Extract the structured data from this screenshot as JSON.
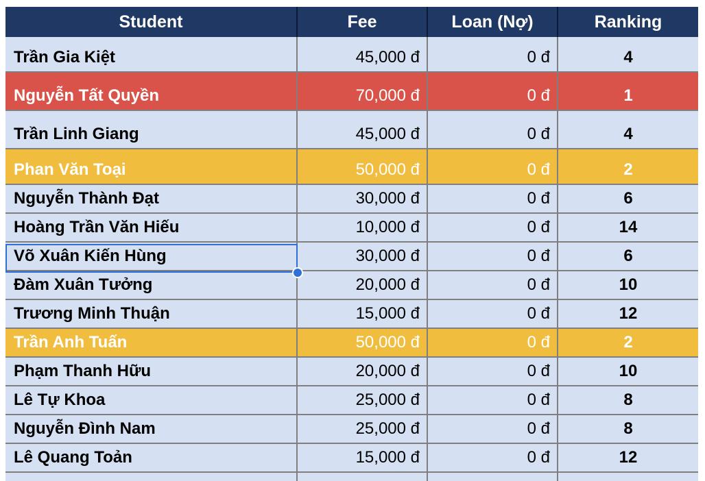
{
  "colors": {
    "header_bg": "#1f3864",
    "row_bg": "#d5e1f2",
    "rank1_bg": "#d9534a",
    "rank2_bg": "#f1bd3f",
    "highlight_text": "#ffffff",
    "selection": "#2f6fd6"
  },
  "headers": {
    "student": "Student",
    "fee": "Fee",
    "loan": "Loan (Nợ)",
    "ranking": "Ranking"
  },
  "rows": [
    {
      "student": "Trần Gia Kiệt",
      "fee": "45,000 đ",
      "loan": "0 đ",
      "ranking": "4",
      "highlight": "none"
    },
    {
      "student": "Nguyễn Tất Quyền",
      "fee": "70,000 đ",
      "loan": "0 đ",
      "ranking": "1",
      "highlight": "red"
    },
    {
      "student": "Trần Linh Giang",
      "fee": "45,000 đ",
      "loan": "0 đ",
      "ranking": "4",
      "highlight": "none"
    },
    {
      "student": "Phan Văn Toại",
      "fee": "50,000 đ",
      "loan": "0 đ",
      "ranking": "2",
      "highlight": "yellow"
    },
    {
      "student": "Nguyễn Thành Đạt",
      "fee": "30,000 đ",
      "loan": "0 đ",
      "ranking": "6",
      "highlight": "none"
    },
    {
      "student": "Hoàng Trần Văn Hiếu",
      "fee": "10,000 đ",
      "loan": "0 đ",
      "ranking": "14",
      "highlight": "none"
    },
    {
      "student": "Võ Xuân Kiến Hùng",
      "fee": "30,000 đ",
      "loan": "0 đ",
      "ranking": "6",
      "highlight": "none",
      "selected": true
    },
    {
      "student": "Đàm Xuân Tưởng",
      "fee": "20,000 đ",
      "loan": "0 đ",
      "ranking": "10",
      "highlight": "none"
    },
    {
      "student": "Trương Minh Thuận",
      "fee": "15,000 đ",
      "loan": "0 đ",
      "ranking": "12",
      "highlight": "none"
    },
    {
      "student": "Trần Anh Tuấn",
      "fee": "50,000 đ",
      "loan": "0 đ",
      "ranking": "2",
      "highlight": "yellow"
    },
    {
      "student": "Phạm Thanh Hữu",
      "fee": "20,000 đ",
      "loan": "0 đ",
      "ranking": "10",
      "highlight": "none"
    },
    {
      "student": "Lê Tự Khoa",
      "fee": "25,000 đ",
      "loan": "0 đ",
      "ranking": "8",
      "highlight": "none"
    },
    {
      "student": "Nguyễn Đình Nam",
      "fee": "25,000 đ",
      "loan": "0 đ",
      "ranking": "8",
      "highlight": "none"
    },
    {
      "student": "Lê Quang Toản",
      "fee": "15,000 đ",
      "loan": "0 đ",
      "ranking": "12",
      "highlight": "none"
    },
    {
      "student": "",
      "fee": "",
      "loan": "",
      "ranking": "",
      "highlight": "none"
    }
  ]
}
